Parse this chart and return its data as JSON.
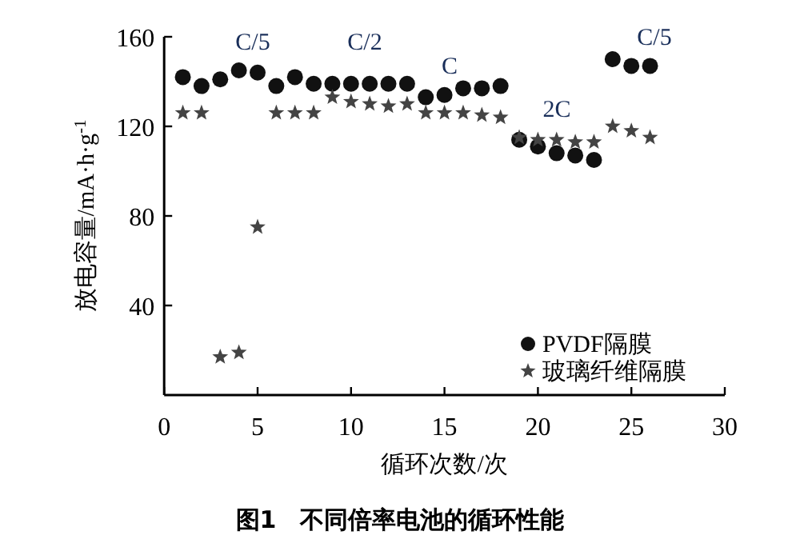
{
  "chart_data": {
    "type": "scatter",
    "title": "图1　不同倍率电池的循环性能",
    "xlabel": "循环次数/次",
    "ylabel": "放电容量/mA·h·g$^{-1}$",
    "x": [
      1,
      2,
      3,
      4,
      5,
      6,
      7,
      8,
      9,
      10,
      11,
      12,
      13,
      14,
      15,
      16,
      17,
      18,
      19,
      20,
      21,
      22,
      23,
      24,
      25,
      26
    ],
    "series": [
      {
        "name": "PVDF隔膜",
        "color": "#111111",
        "marker": "circle",
        "values": [
          142,
          138,
          141,
          145,
          144,
          138,
          142,
          139,
          139,
          139,
          139,
          139,
          139,
          133,
          134,
          137,
          137,
          138,
          114,
          111,
          108,
          107,
          105,
          150,
          147,
          147
        ]
      },
      {
        "name": "玻璃纤维隔膜",
        "color": "#444444",
        "marker": "star",
        "values": [
          126,
          126,
          17,
          19,
          75,
          126,
          126,
          126,
          133,
          131,
          130,
          129,
          130,
          126,
          126,
          126,
          125,
          124,
          115,
          114,
          114,
          113,
          113,
          120,
          118,
          115
        ]
      }
    ],
    "annotations": [
      "C/5",
      "C/2",
      "C",
      "2C",
      "C/5"
    ],
    "xlim": [
      0,
      30
    ],
    "xticks": [
      0,
      5,
      10,
      15,
      20,
      25,
      30
    ],
    "ylim": [
      0,
      160
    ],
    "yticks": [
      40,
      80,
      120,
      160
    ],
    "legend": "bottom right"
  }
}
